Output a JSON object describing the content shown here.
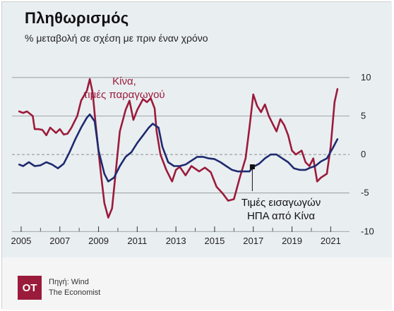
{
  "header": {
    "title": "Πληθωρισμός",
    "subtitle": "% μεταβολή σε σχέση με πριν έναν χρόνο"
  },
  "colors": {
    "producer": "#9b1b3a",
    "imports": "#1e2a6e",
    "background": "#e9eef1",
    "grid": "#8a8f94"
  },
  "chart_data": {
    "type": "line",
    "title": "Πληθωρισμός",
    "subtitle": "% μεταβολή σε σχέση με πριν έναν χρόνο",
    "xlabel": "",
    "ylabel": "",
    "xlim": [
      2004.6,
      2021.9
    ],
    "ylim": [
      -10.8,
      11
    ],
    "x_ticks": [
      2005,
      2007,
      2009,
      2011,
      2013,
      2015,
      2017,
      2019,
      2021
    ],
    "y_ticks": [
      10,
      5,
      0,
      -5,
      -10
    ],
    "y_tick_labels": [
      "10",
      "5",
      "0",
      "-5",
      "-10"
    ],
    "zero_line_dashed": true,
    "grid": "horizontal",
    "series": [
      {
        "name": "Κίνα, τιμές παραγωγού",
        "color": "#9b1b3a",
        "points": [
          [
            2004.9,
            5.6
          ],
          [
            2005.1,
            5.4
          ],
          [
            2005.3,
            5.6
          ],
          [
            2005.6,
            5.0
          ],
          [
            2005.7,
            3.3
          ],
          [
            2005.9,
            3.3
          ],
          [
            2006.1,
            3.2
          ],
          [
            2006.3,
            2.5
          ],
          [
            2006.5,
            3.5
          ],
          [
            2006.8,
            2.8
          ],
          [
            2007.0,
            3.3
          ],
          [
            2007.2,
            2.6
          ],
          [
            2007.4,
            2.7
          ],
          [
            2007.6,
            3.5
          ],
          [
            2007.9,
            5.0
          ],
          [
            2008.1,
            7.0
          ],
          [
            2008.4,
            8.3
          ],
          [
            2008.55,
            9.8
          ],
          [
            2008.7,
            8.0
          ],
          [
            2008.85,
            4.0
          ],
          [
            2009.1,
            -2.0
          ],
          [
            2009.3,
            -6.3
          ],
          [
            2009.5,
            -8.2
          ],
          [
            2009.7,
            -7.0
          ],
          [
            2009.9,
            -2.0
          ],
          [
            2010.1,
            3.0
          ],
          [
            2010.4,
            5.8
          ],
          [
            2010.6,
            7.0
          ],
          [
            2010.8,
            4.5
          ],
          [
            2011.0,
            5.8
          ],
          [
            2011.3,
            7.2
          ],
          [
            2011.5,
            6.8
          ],
          [
            2011.7,
            7.3
          ],
          [
            2011.9,
            6.0
          ],
          [
            2012.0,
            3.0
          ],
          [
            2012.2,
            0.0
          ],
          [
            2012.5,
            -2.0
          ],
          [
            2012.8,
            -3.5
          ],
          [
            2013.0,
            -2.0
          ],
          [
            2013.2,
            -1.6
          ],
          [
            2013.5,
            -2.7
          ],
          [
            2013.8,
            -1.5
          ],
          [
            2014.2,
            -2.2
          ],
          [
            2014.5,
            -1.7
          ],
          [
            2014.8,
            -2.3
          ],
          [
            2015.1,
            -4.2
          ],
          [
            2015.4,
            -5.0
          ],
          [
            2015.7,
            -6.0
          ],
          [
            2016.0,
            -5.8
          ],
          [
            2016.3,
            -3.0
          ],
          [
            2016.6,
            -0.5
          ],
          [
            2016.8,
            3.5
          ],
          [
            2017.0,
            7.8
          ],
          [
            2017.2,
            6.3
          ],
          [
            2017.4,
            5.5
          ],
          [
            2017.6,
            6.5
          ],
          [
            2017.8,
            5.0
          ],
          [
            2018.0,
            4.0
          ],
          [
            2018.2,
            3.0
          ],
          [
            2018.4,
            4.6
          ],
          [
            2018.6,
            3.8
          ],
          [
            2018.8,
            2.5
          ],
          [
            2019.0,
            0.5
          ],
          [
            2019.2,
            0.0
          ],
          [
            2019.5,
            0.5
          ],
          [
            2019.7,
            -1.0
          ],
          [
            2019.9,
            -1.5
          ],
          [
            2020.1,
            -0.5
          ],
          [
            2020.3,
            -3.5
          ],
          [
            2020.5,
            -3.0
          ],
          [
            2020.8,
            -2.5
          ],
          [
            2021.0,
            1.0
          ],
          [
            2021.2,
            6.8
          ],
          [
            2021.35,
            8.5
          ]
        ]
      },
      {
        "name": "Τιμές εισαγωγών ΗΠΑ από Κίνα",
        "color": "#1e2a6e",
        "points": [
          [
            2004.9,
            -1.3
          ],
          [
            2005.1,
            -1.5
          ],
          [
            2005.4,
            -1.0
          ],
          [
            2005.7,
            -1.5
          ],
          [
            2006.0,
            -1.4
          ],
          [
            2006.3,
            -1.0
          ],
          [
            2006.6,
            -1.3
          ],
          [
            2006.9,
            -1.8
          ],
          [
            2007.2,
            -1.2
          ],
          [
            2007.5,
            0.3
          ],
          [
            2007.8,
            2.0
          ],
          [
            2008.1,
            3.5
          ],
          [
            2008.4,
            4.8
          ],
          [
            2008.55,
            5.2
          ],
          [
            2008.8,
            4.3
          ],
          [
            2009.0,
            0.5
          ],
          [
            2009.3,
            -2.5
          ],
          [
            2009.5,
            -3.5
          ],
          [
            2009.8,
            -3.0
          ],
          [
            2010.1,
            -1.5
          ],
          [
            2010.4,
            -0.3
          ],
          [
            2010.7,
            0.3
          ],
          [
            2011.0,
            1.5
          ],
          [
            2011.3,
            2.5
          ],
          [
            2011.6,
            3.5
          ],
          [
            2011.8,
            4.0
          ],
          [
            2012.1,
            3.5
          ],
          [
            2012.3,
            1.0
          ],
          [
            2012.6,
            -1.0
          ],
          [
            2012.9,
            -1.5
          ],
          [
            2013.2,
            -1.5
          ],
          [
            2013.5,
            -1.3
          ],
          [
            2013.8,
            -0.8
          ],
          [
            2014.1,
            -0.3
          ],
          [
            2014.4,
            -0.3
          ],
          [
            2014.7,
            -0.5
          ],
          [
            2015.0,
            -0.6
          ],
          [
            2015.3,
            -1.0
          ],
          [
            2015.6,
            -1.5
          ],
          [
            2015.9,
            -2.0
          ],
          [
            2016.2,
            -2.2
          ],
          [
            2016.5,
            -2.2
          ],
          [
            2016.8,
            -2.2
          ],
          [
            2017.0,
            -1.6
          ],
          [
            2017.3,
            -1.2
          ],
          [
            2017.6,
            -0.5
          ],
          [
            2017.9,
            0.0
          ],
          [
            2018.2,
            0.0
          ],
          [
            2018.5,
            -0.5
          ],
          [
            2018.8,
            -1.0
          ],
          [
            2019.1,
            -1.8
          ],
          [
            2019.4,
            -2.0
          ],
          [
            2019.7,
            -2.0
          ],
          [
            2019.95,
            -1.7
          ],
          [
            2020.2,
            -1.5
          ],
          [
            2020.5,
            -0.9
          ],
          [
            2020.8,
            -0.5
          ],
          [
            2021.1,
            0.8
          ],
          [
            2021.35,
            2.0
          ]
        ]
      }
    ],
    "labels": [
      {
        "series": 0,
        "lines": [
          "Κίνα,",
          "τιμές παραγωγού"
        ]
      },
      {
        "series": 1,
        "lines": [
          "Τιμές εισαγωγών",
          "ΗΠΑ από Κίνα"
        ]
      }
    ],
    "marker": {
      "series": 1,
      "x": 2016.95,
      "y": -1.6
    }
  },
  "footer": {
    "logo": "OT",
    "source_line1": "Πηγή: Wind",
    "source_line2": "The Economist"
  }
}
